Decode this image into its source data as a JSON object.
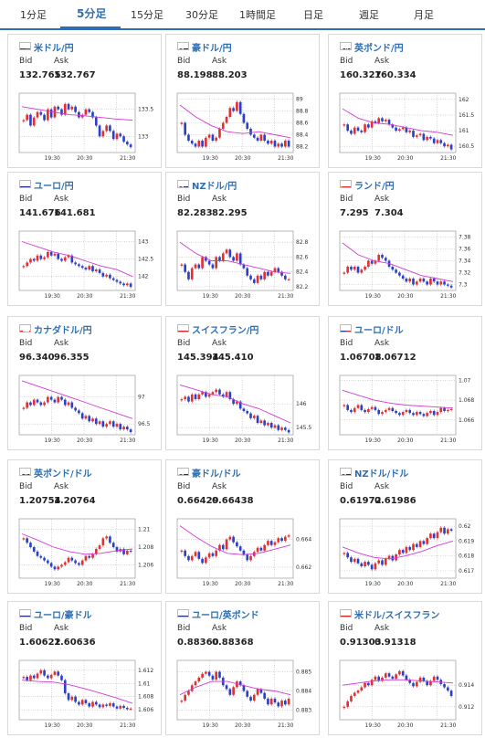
{
  "tabs": [
    {
      "label": "1分足",
      "active": false
    },
    {
      "label": "5分足",
      "active": true
    },
    {
      "label": "15分足",
      "active": false
    },
    {
      "label": "30分足",
      "active": false
    },
    {
      "label": "1時間足",
      "active": false
    },
    {
      "label": "日足",
      "active": false
    },
    {
      "label": "週足",
      "active": false
    },
    {
      "label": "月足",
      "active": false
    }
  ],
  "colors": {
    "accent": "#2f6fb1",
    "up": "#e03030",
    "down": "#2b3fc7",
    "ma": "#d23ad6"
  },
  "bid_label": "Bid",
  "ask_label": "Ask",
  "x_ticks": [
    "19:30",
    "20:30",
    "21:30"
  ],
  "cards": [
    {
      "pair": "米ドル/円",
      "flag": "us",
      "bid": "132.765",
      "ask": "132.767",
      "y_ticks": [
        "133.5",
        "133"
      ],
      "chart_data": {
        "type": "candlestick",
        "x": [
          "19:30",
          "20:30",
          "21:30"
        ],
        "ylim": [
          132.7,
          133.8
        ],
        "closes": [
          133.3,
          133.4,
          133.2,
          133.35,
          133.45,
          133.4,
          133.3,
          133.5,
          133.35,
          133.55,
          133.5,
          133.4,
          133.6,
          133.5,
          133.55,
          133.45,
          133.35,
          133.4,
          133.5,
          133.45,
          133.35,
          133.2,
          133.0,
          133.1,
          133.2,
          133.1,
          132.95,
          133.05,
          133.0,
          132.9,
          132.85,
          132.8
        ],
        "ma": [
          133.55,
          133.5,
          133.45,
          133.4,
          133.38,
          133.35,
          133.32,
          133.3
        ]
      }
    },
    {
      "pair": "豪ドル/円",
      "flag": "au",
      "bid": "88.198",
      "ask": "88.203",
      "y_ticks": [
        "89",
        "88.8",
        "88.6",
        "88.4",
        "88.2"
      ],
      "chart_data": {
        "type": "candlestick",
        "x": [
          "19:30",
          "20:30",
          "21:30"
        ],
        "ylim": [
          88.1,
          89.1
        ],
        "closes": [
          88.6,
          88.4,
          88.3,
          88.25,
          88.2,
          88.3,
          88.2,
          88.35,
          88.4,
          88.3,
          88.35,
          88.5,
          88.6,
          88.7,
          88.85,
          88.8,
          88.95,
          88.75,
          88.6,
          88.5,
          88.4,
          88.35,
          88.3,
          88.4,
          88.3,
          88.25,
          88.3,
          88.2,
          88.25,
          88.2,
          88.3,
          88.2
        ],
        "ma": [
          88.9,
          88.7,
          88.55,
          88.45,
          88.42,
          88.45,
          88.4,
          88.35
        ]
      }
    },
    {
      "pair": "英ポンド/円",
      "flag": "gb",
      "bid": "160.327",
      "ask": "160.334",
      "y_ticks": [
        "162",
        "161.5",
        "161",
        "160.5"
      ],
      "chart_data": {
        "type": "candlestick",
        "x": [
          "19:30",
          "20:30",
          "21:30"
        ],
        "ylim": [
          160.3,
          162.2
        ],
        "closes": [
          161.2,
          161.0,
          160.9,
          161.1,
          161.0,
          160.95,
          161.2,
          161.1,
          161.3,
          161.25,
          161.4,
          161.3,
          161.35,
          161.2,
          161.1,
          161.0,
          161.05,
          161.1,
          160.95,
          161.0,
          160.8,
          160.85,
          160.9,
          160.7,
          160.8,
          160.75,
          160.6,
          160.7,
          160.6,
          160.5,
          160.55,
          160.4
        ],
        "ma": [
          161.7,
          161.4,
          161.25,
          161.2,
          161.1,
          161.0,
          160.95,
          160.85
        ]
      }
    },
    {
      "pair": "ユーロ/円",
      "flag": "eu",
      "bid": "141.676",
      "ask": "141.681",
      "y_ticks": [
        "143",
        "142.5",
        "142"
      ],
      "chart_data": {
        "type": "candlestick",
        "x": [
          "19:30",
          "20:30",
          "21:30"
        ],
        "ylim": [
          141.6,
          143.3
        ],
        "closes": [
          142.3,
          142.4,
          142.5,
          142.45,
          142.6,
          142.5,
          142.55,
          142.7,
          142.6,
          142.65,
          142.5,
          142.45,
          142.55,
          142.6,
          142.4,
          142.35,
          142.3,
          142.25,
          142.2,
          142.3,
          142.15,
          142.2,
          142.1,
          142.0,
          142.05,
          141.95,
          141.9,
          141.85,
          141.8,
          141.75,
          141.8,
          141.7
        ],
        "ma": [
          143.0,
          142.85,
          142.7,
          142.6,
          142.45,
          142.3,
          142.2,
          142.0
        ]
      }
    },
    {
      "pair": "NZドル/円",
      "flag": "nz",
      "bid": "82.283",
      "ask": "82.295",
      "y_ticks": [
        "82.8",
        "82.6",
        "82.4",
        "82.2"
      ],
      "chart_data": {
        "type": "candlestick",
        "x": [
          "19:30",
          "20:30",
          "21:30"
        ],
        "ylim": [
          82.15,
          82.95
        ],
        "closes": [
          82.5,
          82.4,
          82.3,
          82.45,
          82.5,
          82.45,
          82.6,
          82.55,
          82.5,
          82.45,
          82.6,
          82.55,
          82.65,
          82.7,
          82.6,
          82.55,
          82.65,
          82.5,
          82.45,
          82.35,
          82.3,
          82.25,
          82.35,
          82.3,
          82.4,
          82.35,
          82.4,
          82.45,
          82.4,
          82.35,
          82.3,
          82.3
        ],
        "ma": [
          82.8,
          82.65,
          82.55,
          82.55,
          82.5,
          82.45,
          82.4,
          82.38
        ]
      }
    },
    {
      "pair": "ランド/円",
      "flag": "za",
      "bid": "7.295",
      "ask": "7.304",
      "y_ticks": [
        "7.38",
        "7.36",
        "7.34",
        "7.32",
        "7.3"
      ],
      "chart_data": {
        "type": "candlestick",
        "x": [
          "19:30",
          "20:30",
          "21:30"
        ],
        "ylim": [
          7.29,
          7.39
        ],
        "closes": [
          7.32,
          7.33,
          7.325,
          7.33,
          7.32,
          7.325,
          7.33,
          7.34,
          7.335,
          7.34,
          7.35,
          7.345,
          7.34,
          7.33,
          7.325,
          7.32,
          7.315,
          7.31,
          7.305,
          7.31,
          7.3,
          7.305,
          7.31,
          7.305,
          7.3,
          7.31,
          7.305,
          7.3,
          7.305,
          7.3,
          7.298,
          7.295
        ],
        "ma": [
          7.37,
          7.35,
          7.34,
          7.335,
          7.325,
          7.315,
          7.31,
          7.305
        ]
      }
    },
    {
      "pair": "カナダドル/円",
      "flag": "ca",
      "bid": "96.340",
      "ask": "96.355",
      "y_ticks": [
        "97",
        "96.5"
      ],
      "chart_data": {
        "type": "candlestick",
        "x": [
          "19:30",
          "20:30",
          "21:30"
        ],
        "ylim": [
          96.3,
          97.4
        ],
        "closes": [
          96.8,
          96.9,
          96.85,
          96.95,
          96.9,
          96.85,
          96.9,
          97.0,
          96.95,
          96.9,
          97.0,
          96.95,
          96.85,
          96.9,
          96.8,
          96.75,
          96.7,
          96.6,
          96.65,
          96.55,
          96.6,
          96.5,
          96.55,
          96.45,
          96.5,
          96.55,
          96.45,
          96.5,
          96.4,
          96.45,
          96.4,
          96.35
        ],
        "ma": [
          97.3,
          97.2,
          97.1,
          97.0,
          96.9,
          96.8,
          96.7,
          96.6
        ]
      }
    },
    {
      "pair": "スイスフラン/円",
      "flag": "ch",
      "bid": "145.394",
      "ask": "145.410",
      "y_ticks": [
        "146",
        "145.5"
      ],
      "chart_data": {
        "type": "candlestick",
        "x": [
          "19:30",
          "20:30",
          "21:30"
        ],
        "ylim": [
          145.35,
          146.6
        ],
        "closes": [
          146.1,
          146.15,
          146.05,
          146.2,
          146.1,
          146.2,
          146.25,
          146.15,
          146.2,
          146.25,
          146.3,
          146.2,
          146.15,
          146.25,
          146.1,
          146.0,
          146.05,
          145.9,
          145.85,
          145.8,
          145.7,
          145.75,
          145.6,
          145.65,
          145.55,
          145.6,
          145.5,
          145.55,
          145.45,
          145.5,
          145.45,
          145.4
        ],
        "ma": [
          146.4,
          146.3,
          146.2,
          146.15,
          146.0,
          145.9,
          145.75,
          145.6
        ]
      }
    },
    {
      "pair": "ユーロ/ドル",
      "flag": "us",
      "bid": "1.06708",
      "ask": "1.06712",
      "y_ticks": [
        "1.07",
        "1.068",
        "1.066"
      ],
      "chart_data": {
        "type": "candlestick",
        "x": [
          "19:30",
          "20:30",
          "21:30"
        ],
        "ylim": [
          1.0645,
          1.0705
        ],
        "closes": [
          1.0675,
          1.067,
          1.0668,
          1.0672,
          1.0675,
          1.067,
          1.0668,
          1.0671,
          1.0673,
          1.067,
          1.0666,
          1.0668,
          1.067,
          1.0672,
          1.0669,
          1.0667,
          1.0665,
          1.0668,
          1.067,
          1.0667,
          1.0665,
          1.0668,
          1.0666,
          1.0664,
          1.0667,
          1.0669,
          1.0665,
          1.0668,
          1.0672,
          1.0669,
          1.067,
          1.0671
        ],
        "ma": [
          1.069,
          1.0685,
          1.068,
          1.0677,
          1.0675,
          1.0674,
          1.0673,
          1.0672
        ]
      }
    },
    {
      "pair": "英ポンド/ドル",
      "flag": "gb",
      "bid": "1.20754",
      "ask": "1.20764",
      "y_ticks": [
        "1.21",
        "1.208",
        "1.206"
      ],
      "chart_data": {
        "type": "candlestick",
        "x": [
          "19:30",
          "20:30",
          "21:30"
        ],
        "ylim": [
          1.2045,
          1.2112
        ],
        "closes": [
          1.209,
          1.2085,
          1.208,
          1.2075,
          1.207,
          1.2068,
          1.2065,
          1.2062,
          1.2058,
          1.2055,
          1.2058,
          1.206,
          1.2063,
          1.2068,
          1.2065,
          1.2062,
          1.206,
          1.2065,
          1.207,
          1.2068,
          1.2072,
          1.2078,
          1.2082,
          1.209,
          1.2092,
          1.2085,
          1.208,
          1.2075,
          1.2078,
          1.2072,
          1.2076,
          1.2075
        ],
        "ma": [
          1.2095,
          1.2088,
          1.208,
          1.2075,
          1.2072,
          1.2073,
          1.2076,
          1.2078
        ]
      }
    },
    {
      "pair": "豪ドル/ドル",
      "flag": "au",
      "bid": "0.66429",
      "ask": "0.66438",
      "y_ticks": [
        "0.664",
        "0.662"
      ],
      "chart_data": {
        "type": "candlestick",
        "x": [
          "19:30",
          "20:30",
          "21:30"
        ],
        "ylim": [
          0.6612,
          0.6655
        ],
        "closes": [
          0.6632,
          0.6628,
          0.6625,
          0.6628,
          0.6631,
          0.6626,
          0.6623,
          0.6627,
          0.663,
          0.6628,
          0.6632,
          0.6636,
          0.6633,
          0.664,
          0.6642,
          0.6638,
          0.6635,
          0.6632,
          0.6629,
          0.6625,
          0.6628,
          0.6631,
          0.6634,
          0.6632,
          0.6636,
          0.6639,
          0.6636,
          0.6638,
          0.6641,
          0.6639,
          0.6642,
          0.6643
        ],
        "ma": [
          0.665,
          0.6642,
          0.6635,
          0.663,
          0.6629,
          0.663,
          0.6633,
          0.6636
        ]
      }
    },
    {
      "pair": "NZドル/ドル",
      "flag": "nz",
      "bid": "0.61972",
      "ask": "0.61986",
      "y_ticks": [
        "0.62",
        "0.619",
        "0.618",
        "0.617"
      ],
      "chart_data": {
        "type": "candlestick",
        "x": [
          "19:30",
          "20:30",
          "21:30"
        ],
        "ylim": [
          0.6165,
          0.6205
        ],
        "closes": [
          0.6182,
          0.6179,
          0.6176,
          0.6178,
          0.6175,
          0.6173,
          0.6176,
          0.6174,
          0.6171,
          0.6175,
          0.6177,
          0.6174,
          0.6178,
          0.618,
          0.6177,
          0.6181,
          0.6184,
          0.6182,
          0.6186,
          0.6184,
          0.6188,
          0.6186,
          0.619,
          0.6188,
          0.6192,
          0.6195,
          0.6192,
          0.6196,
          0.6199,
          0.6195,
          0.6198,
          0.6197
        ],
        "ma": [
          0.6186,
          0.6182,
          0.6179,
          0.6178,
          0.618,
          0.6183,
          0.6187,
          0.619
        ]
      }
    },
    {
      "pair": "ユーロ/豪ドル",
      "flag": "eu",
      "bid": "1.60622",
      "ask": "1.60636",
      "y_ticks": [
        "1.612",
        "1.61",
        "1.608",
        "1.606"
      ],
      "chart_data": {
        "type": "candlestick",
        "x": [
          "19:30",
          "20:30",
          "21:30"
        ],
        "ylim": [
          1.6045,
          1.6135
        ],
        "closes": [
          1.611,
          1.6105,
          1.6112,
          1.6108,
          1.6115,
          1.612,
          1.6112,
          1.6108,
          1.6113,
          1.6118,
          1.6112,
          1.6105,
          1.6085,
          1.6075,
          1.608,
          1.6072,
          1.6068,
          1.6075,
          1.607,
          1.6065,
          1.6072,
          1.6068,
          1.6064,
          1.6068,
          1.6066,
          1.607,
          1.6065,
          1.6062,
          1.6066,
          1.6063,
          1.6061,
          1.6062
        ],
        "ma": [
          1.6105,
          1.6103,
          1.6102,
          1.6098,
          1.6092,
          1.6085,
          1.6078,
          1.607
        ]
      }
    },
    {
      "pair": "ユーロ/英ポンド",
      "flag": "eu",
      "bid": "0.88360",
      "ask": "0.88368",
      "y_ticks": [
        "0.885",
        "0.884",
        "0.883"
      ],
      "chart_data": {
        "type": "candlestick",
        "x": [
          "19:30",
          "20:30",
          "21:30"
        ],
        "ylim": [
          0.8825,
          0.8856
        ],
        "closes": [
          0.8835,
          0.8838,
          0.884,
          0.8843,
          0.8845,
          0.8847,
          0.8849,
          0.885,
          0.8848,
          0.8846,
          0.885,
          0.8847,
          0.8843,
          0.8841,
          0.8838,
          0.8842,
          0.8845,
          0.8843,
          0.884,
          0.8837,
          0.8835,
          0.8838,
          0.8841,
          0.8839,
          0.8836,
          0.8833,
          0.8836,
          0.8834,
          0.8832,
          0.8835,
          0.8833,
          0.8836
        ],
        "ma": [
          0.8838,
          0.8842,
          0.8845,
          0.8845,
          0.8843,
          0.8841,
          0.884,
          0.8838
        ]
      }
    },
    {
      "pair": "米ドル/スイスフラン",
      "flag": "ch",
      "bid": "0.91303",
      "ask": "0.91318",
      "y_ticks": [
        "0.914",
        "0.912"
      ],
      "chart_data": {
        "type": "candlestick",
        "x": [
          "19:30",
          "20:30",
          "21:30"
        ],
        "ylim": [
          0.9108,
          0.9163
        ],
        "closes": [
          0.912,
          0.9125,
          0.913,
          0.9133,
          0.9135,
          0.9138,
          0.9142,
          0.914,
          0.9145,
          0.9148,
          0.9144,
          0.9147,
          0.9151,
          0.9148,
          0.9146,
          0.915,
          0.9153,
          0.9149,
          0.9145,
          0.9142,
          0.9139,
          0.9143,
          0.9147,
          0.9144,
          0.914,
          0.9144,
          0.9148,
          0.9145,
          0.9141,
          0.9138,
          0.9135,
          0.913
        ],
        "ma": [
          0.914,
          0.9142,
          0.9144,
          0.9145,
          0.9145,
          0.9144,
          0.9143,
          0.9142
        ]
      }
    }
  ]
}
